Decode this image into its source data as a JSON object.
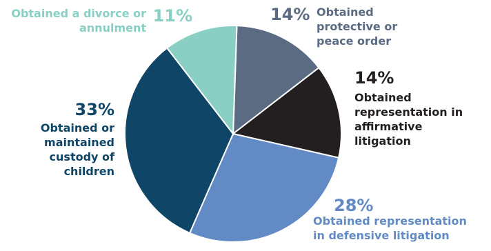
{
  "chart_data": {
    "type": "pie",
    "slices": [
      {
        "label": "Obtained protective or peace order",
        "percent_label": "14%",
        "value": 14,
        "color": "#5a6b82"
      },
      {
        "label": "Obtained representation in affirmative litigation",
        "percent_label": "14%",
        "value": 14,
        "color": "#231f20"
      },
      {
        "label": "Obtained representation in defensive litigation",
        "percent_label": "28%",
        "value": 28,
        "color": "#628bc6"
      },
      {
        "label": "Obtained or maintained custody of children",
        "percent_label": "33%",
        "value": 33,
        "color": "#0f4566"
      },
      {
        "label": "Obtained a divorce or annulment",
        "percent_label": "11%",
        "value": 11,
        "color": "#89cfc3"
      }
    ],
    "start_angle_deg": 2
  }
}
